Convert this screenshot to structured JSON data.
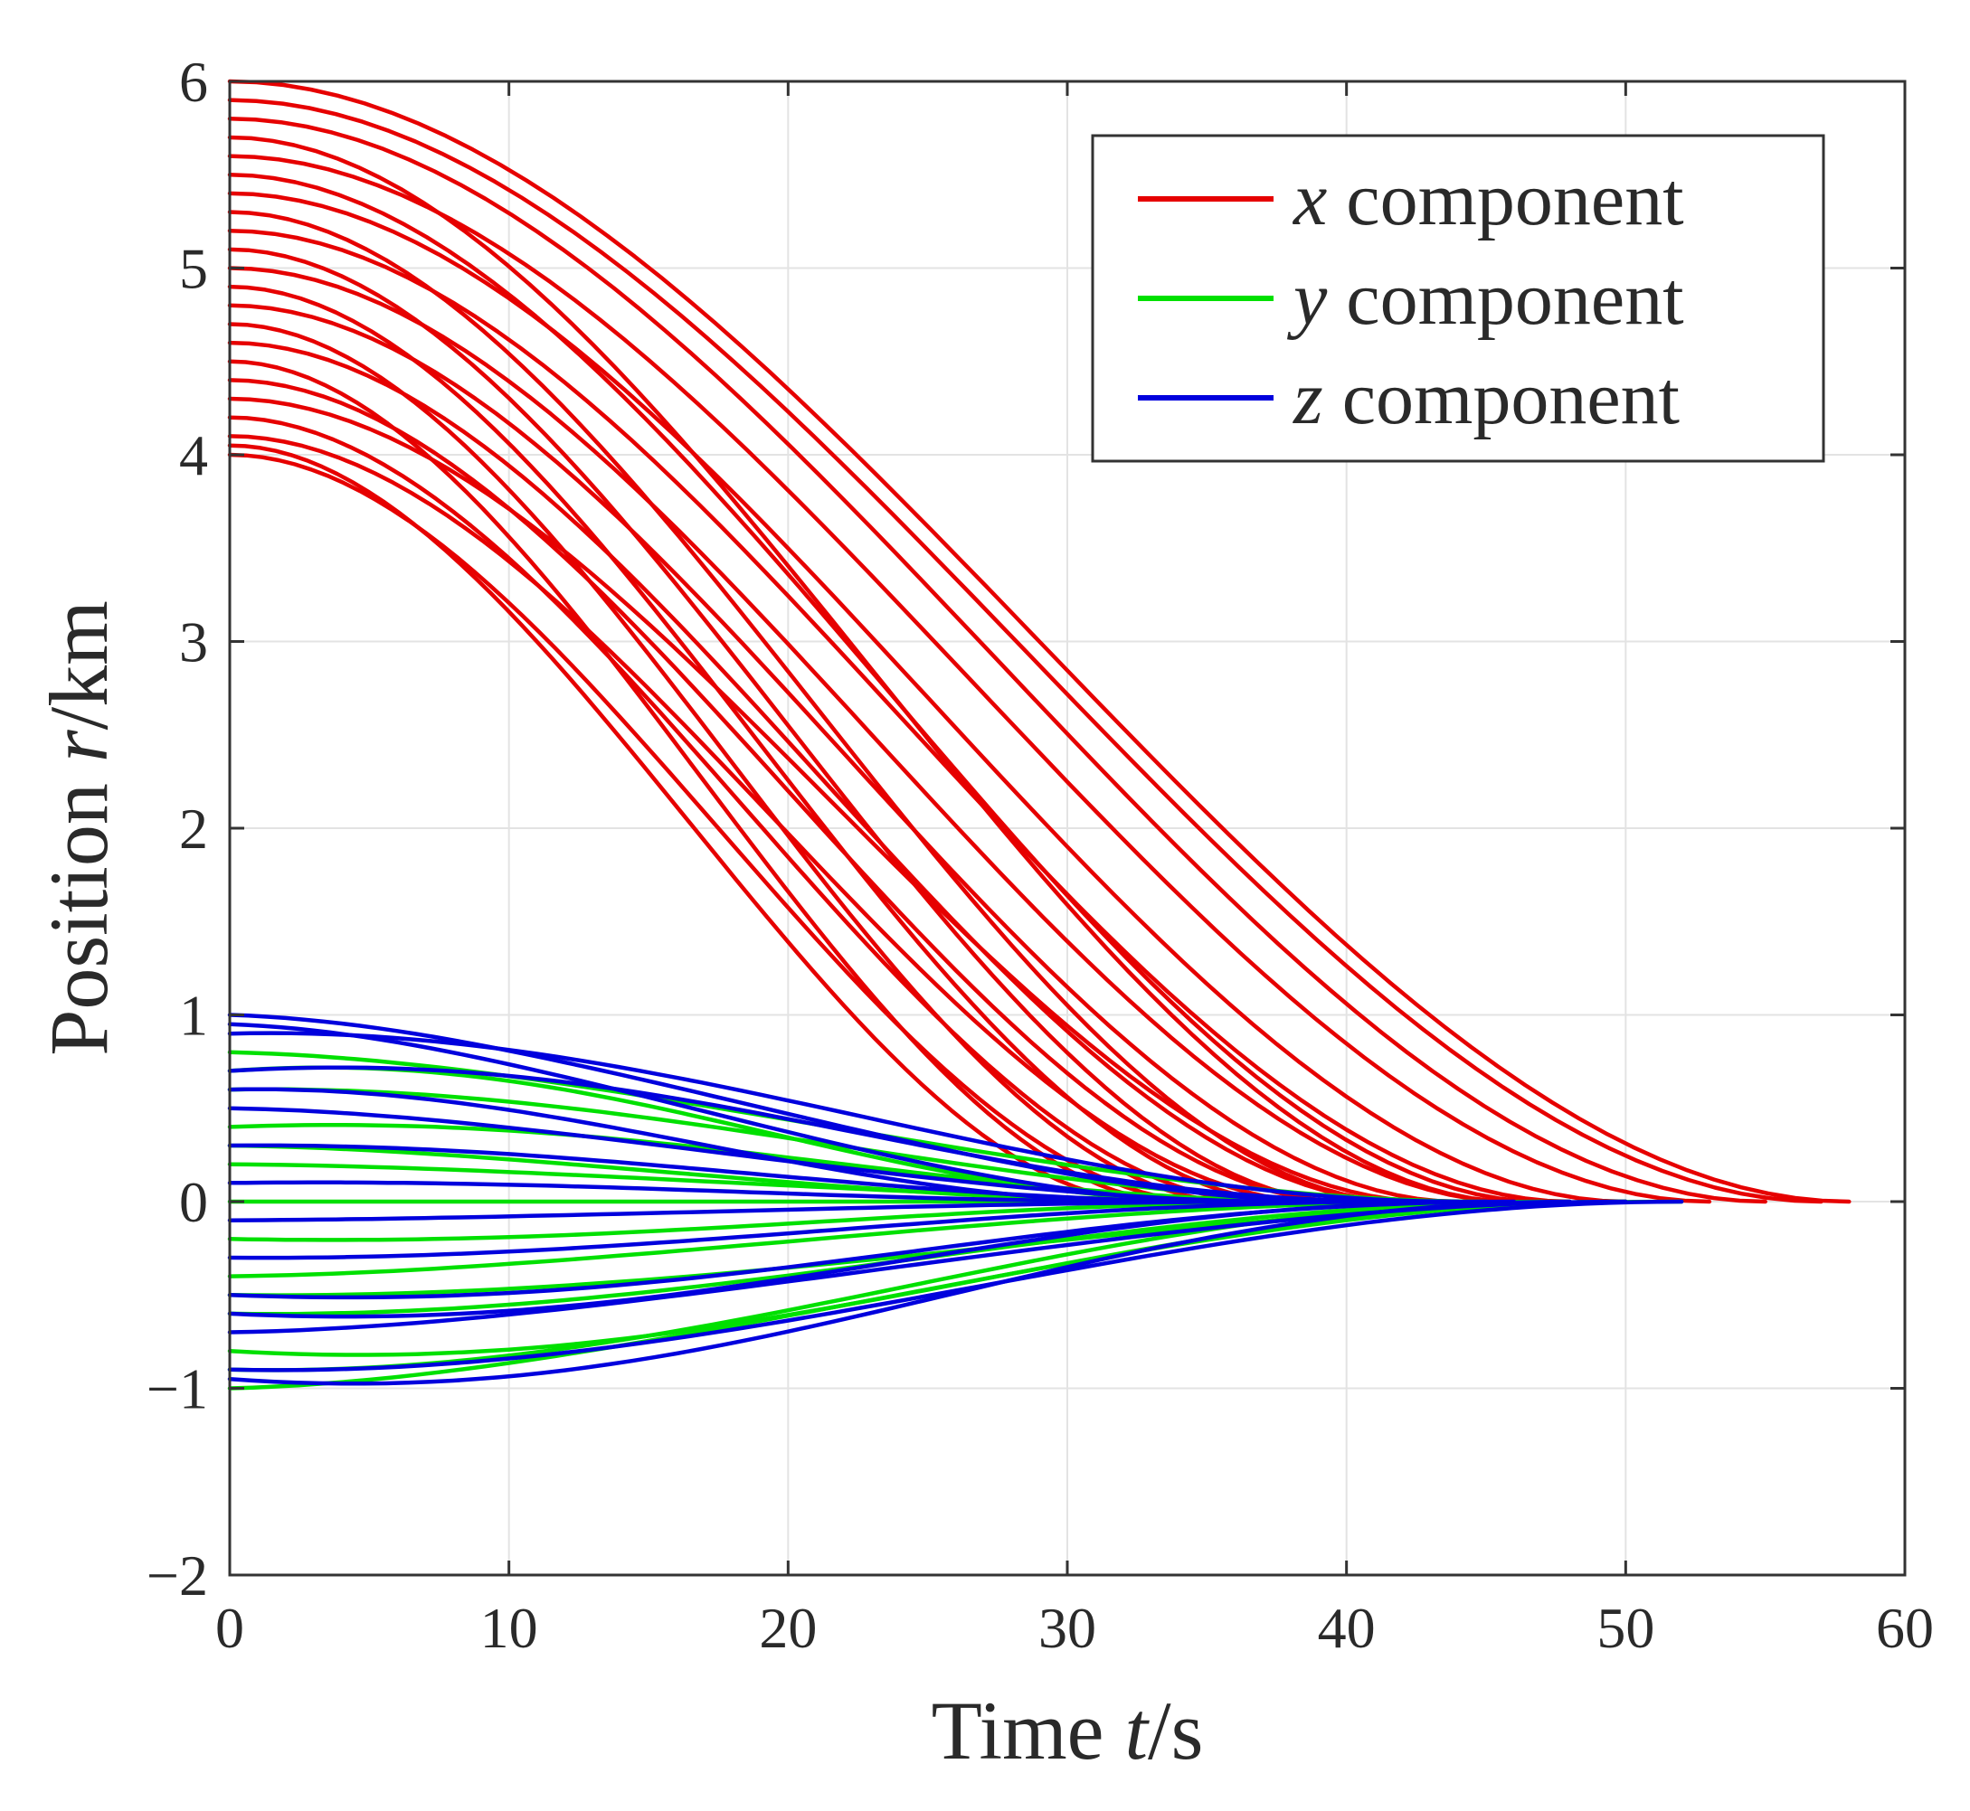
{
  "chart_data": {
    "type": "line",
    "title": "",
    "xlabel_text": "Time ",
    "xlabel_var": "t",
    "xlabel_unit": "/s",
    "ylabel_text": "Position ",
    "ylabel_var": "r",
    "ylabel_unit": "/km",
    "xlim": [
      0,
      60
    ],
    "ylim": [
      -2,
      6
    ],
    "xticks": [
      0,
      10,
      20,
      30,
      40,
      50,
      60
    ],
    "xtick_labels": [
      "0",
      "10",
      "20",
      "30",
      "40",
      "50",
      "60"
    ],
    "yticks": [
      -2,
      -1,
      0,
      1,
      2,
      3,
      4,
      5,
      6
    ],
    "ytick_labels": [
      "−2",
      "−1",
      "0",
      "1",
      "2",
      "3",
      "4",
      "5",
      "6"
    ],
    "grid": true,
    "legend_position": "top-right",
    "series": [
      {
        "name": "x component",
        "legend_var": "x",
        "legend_text": " component",
        "color": "#e60000",
        "description": "Monte Carlo trajectories starting between 4 and 6 km, decreasing smoothly to 0 at final times of roughly 33–58 s",
        "trajectories": [
          {
            "start": 6.0,
            "end_time": 58
          },
          {
            "start": 5.9,
            "end_time": 57
          },
          {
            "start": 5.8,
            "end_time": 55
          },
          {
            "start": 5.6,
            "end_time": 53
          },
          {
            "start": 5.4,
            "end_time": 50
          },
          {
            "start": 5.2,
            "end_time": 48
          },
          {
            "start": 5.0,
            "end_time": 46
          },
          {
            "start": 4.8,
            "end_time": 44
          },
          {
            "start": 4.6,
            "end_time": 42
          },
          {
            "start": 4.4,
            "end_time": 40
          },
          {
            "start": 4.2,
            "end_time": 37
          },
          {
            "start": 4.0,
            "end_time": 35
          },
          {
            "start": 5.7,
            "end_time": 46
          },
          {
            "start": 5.3,
            "end_time": 42
          },
          {
            "start": 5.1,
            "end_time": 40
          },
          {
            "start": 4.9,
            "end_time": 38
          },
          {
            "start": 4.7,
            "end_time": 36
          },
          {
            "start": 4.5,
            "end_time": 34
          },
          {
            "start": 4.3,
            "end_time": 43
          },
          {
            "start": 4.1,
            "end_time": 39
          },
          {
            "start": 5.5,
            "end_time": 47
          },
          {
            "start": 4.05,
            "end_time": 33
          }
        ]
      },
      {
        "name": "y component",
        "legend_var": "y",
        "legend_text": " component",
        "color": "#00e000",
        "description": "Trajectories starting between -1 and 1 km, converging to 0",
        "trajectories": [
          {
            "start": 0.8,
            "end_time": 45
          },
          {
            "start": 0.6,
            "end_time": 42
          },
          {
            "start": 0.4,
            "end_time": 40
          },
          {
            "start": 0.2,
            "end_time": 38
          },
          {
            "start": 0.0,
            "end_time": 36
          },
          {
            "start": -0.2,
            "end_time": 40
          },
          {
            "start": -0.4,
            "end_time": 44
          },
          {
            "start": -0.6,
            "end_time": 48
          },
          {
            "start": -0.8,
            "end_time": 50
          },
          {
            "start": -1.0,
            "end_time": 50
          },
          {
            "start": -0.9,
            "end_time": 47
          },
          {
            "start": 0.7,
            "end_time": 36
          },
          {
            "start": 0.3,
            "end_time": 34
          },
          {
            "start": -0.5,
            "end_time": 52
          }
        ]
      },
      {
        "name": "z component",
        "legend_var": "z",
        "legend_text": " component",
        "color": "#0000dd",
        "description": "Trajectories starting between -1 and 1 km, converging to 0",
        "trajectories": [
          {
            "start": 1.0,
            "end_time": 40
          },
          {
            "start": 0.9,
            "end_time": 44
          },
          {
            "start": 0.7,
            "end_time": 42
          },
          {
            "start": 0.5,
            "end_time": 38
          },
          {
            "start": 0.3,
            "end_time": 36
          },
          {
            "start": 0.1,
            "end_time": 34
          },
          {
            "start": -0.1,
            "end_time": 38
          },
          {
            "start": -0.3,
            "end_time": 42
          },
          {
            "start": -0.5,
            "end_time": 46
          },
          {
            "start": -0.7,
            "end_time": 50
          },
          {
            "start": -0.9,
            "end_time": 52
          },
          {
            "start": -0.95,
            "end_time": 48
          },
          {
            "start": 0.95,
            "end_time": 36
          },
          {
            "start": 0.6,
            "end_time": 33
          },
          {
            "start": -0.6,
            "end_time": 45
          }
        ]
      }
    ]
  }
}
